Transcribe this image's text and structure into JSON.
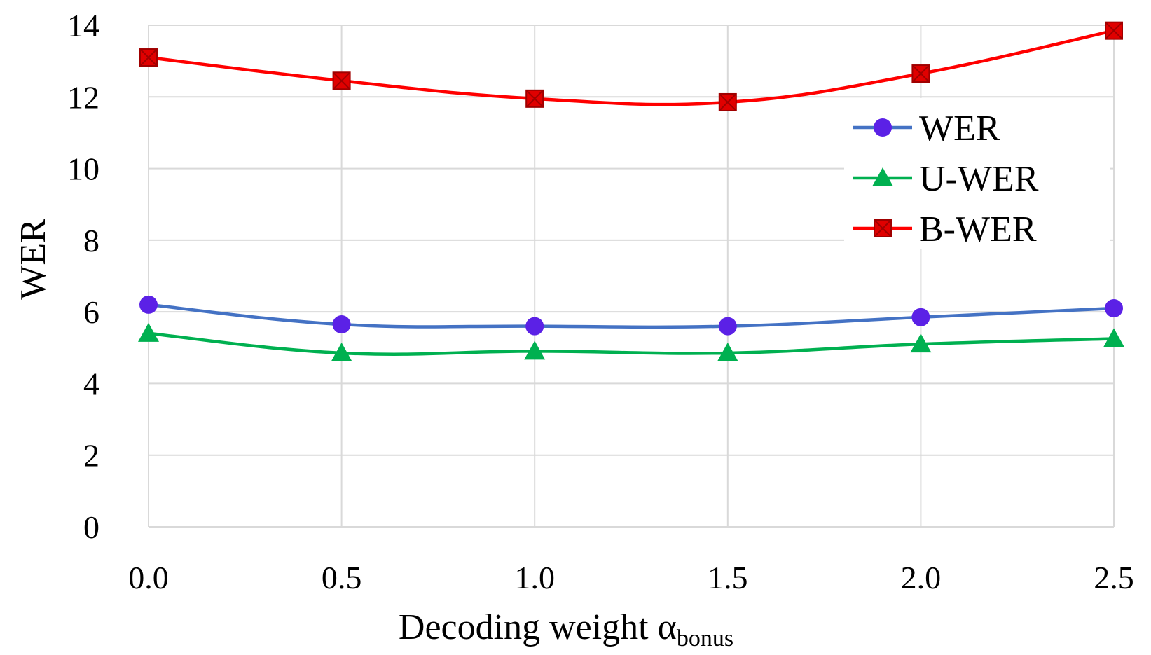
{
  "chart_data": {
    "type": "line",
    "title": "",
    "x": [
      0.0,
      0.5,
      1.0,
      1.5,
      2.0,
      2.5
    ],
    "x_tick_labels": [
      "0.0",
      "0.5",
      "1.0",
      "1.5",
      "2.0",
      "2.5"
    ],
    "y_tick_labels": [
      "0",
      "2",
      "4",
      "6",
      "8",
      "10",
      "12",
      "14"
    ],
    "xlabel": "Decoding weight α",
    "xlabel_subscript": "bonus",
    "ylabel": "WER",
    "xlim": [
      0.0,
      2.5
    ],
    "ylim": [
      0,
      14
    ],
    "grid": true,
    "legend_position": "right",
    "series": [
      {
        "name": "WER",
        "marker": "circle",
        "color": "#4472C4",
        "marker_color": "#5B21E6",
        "values": [
          6.2,
          5.65,
          5.6,
          5.6,
          5.85,
          6.1
        ]
      },
      {
        "name": "U-WER",
        "marker": "triangle",
        "color": "#00B050",
        "marker_color": "#00B050",
        "values": [
          5.4,
          4.85,
          4.9,
          4.85,
          5.1,
          5.25
        ]
      },
      {
        "name": "B-WER",
        "marker": "square",
        "color": "#FF0000",
        "marker_color": "#E00000",
        "values": [
          13.1,
          12.45,
          11.95,
          11.85,
          12.65,
          13.85
        ]
      }
    ]
  }
}
